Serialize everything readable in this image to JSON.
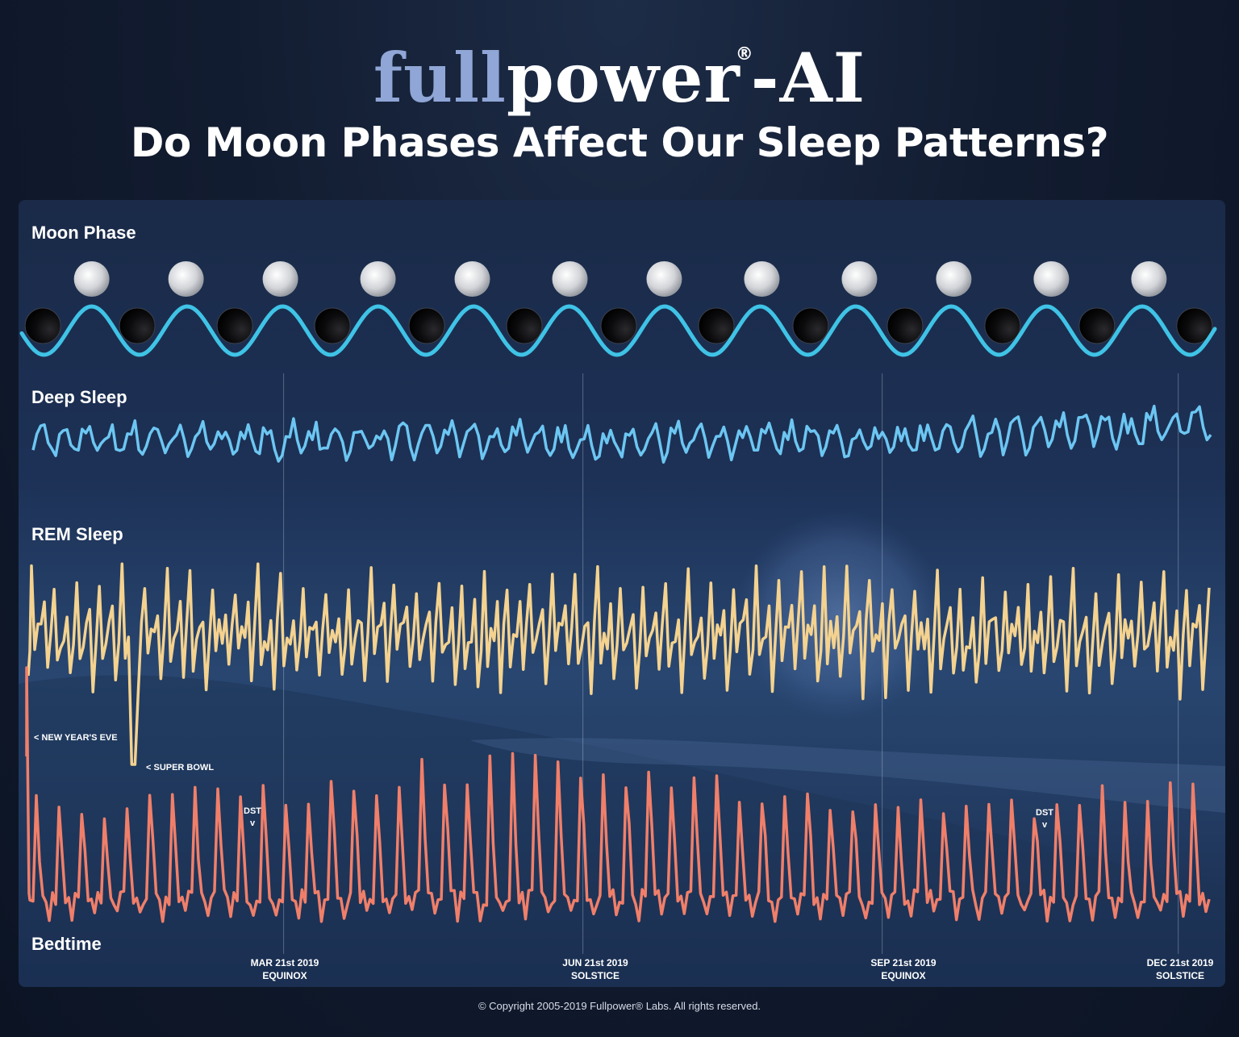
{
  "header": {
    "logo_part1": "full",
    "logo_part2": "power",
    "logo_reg": "®",
    "logo_part3": "-AI",
    "title": "Do Moon Phases Affect Our Sleep Patterns?"
  },
  "footer": {
    "copyright": "© Copyright 2005-2019 Fullpower® Labs. All rights reserved."
  },
  "colors": {
    "logo_accent": "#8fa6d6",
    "moon_wave_high": "#f3d34a",
    "moon_wave_low": "#3fc3e6",
    "deep_sleep": "#6cc6f2",
    "rem_sleep": "#f4d28f",
    "bedtime": "#f07f6a"
  },
  "chart_data": {
    "type": "line",
    "title": "Do Moon Phases Affect Our Sleep Patterns?",
    "x_range": [
      "2019-01-01",
      "2019-12-31"
    ],
    "grid": false,
    "units_note": "",
    "markers": [
      {
        "date": "2019-03-21",
        "label": "MAR 21st 2019",
        "sublabel": "EQUINOX"
      },
      {
        "date": "2019-06-21",
        "label": "JUN 21st 2019",
        "sublabel": "SOLSTICE"
      },
      {
        "date": "2019-09-21",
        "label": "SEP 21st 2019",
        "sublabel": "EQUINOX"
      },
      {
        "date": "2019-12-21",
        "label": "DEC 21st 2019",
        "sublabel": "SOLSTICE"
      }
    ],
    "annotations": [
      {
        "series": "REM Sleep",
        "date": "2019-01-01",
        "text": "< NEW YEAR'S EVE"
      },
      {
        "series": "REM Sleep",
        "date": "2019-02-03",
        "text": "< SUPER BOWL"
      },
      {
        "series": "Bedtime",
        "date": "2019-03-10",
        "text": "DST",
        "mark": "v"
      },
      {
        "series": "Bedtime",
        "date": "2019-11-03",
        "text": "DST",
        "mark": "v"
      }
    ],
    "moon_phase": {
      "label": "Moon Phase",
      "full_moons": [
        "2019-01-21",
        "2019-02-19",
        "2019-03-20",
        "2019-04-19",
        "2019-05-18",
        "2019-06-17",
        "2019-07-16",
        "2019-08-15",
        "2019-09-14",
        "2019-10-13",
        "2019-11-12",
        "2019-12-12"
      ],
      "new_moons": [
        "2019-01-06",
        "2019-02-04",
        "2019-03-06",
        "2019-04-05",
        "2019-05-04",
        "2019-06-03",
        "2019-07-02",
        "2019-08-01",
        "2019-08-30",
        "2019-09-28",
        "2019-10-28",
        "2019-11-26",
        "2019-12-26"
      ],
      "cycles": 12.4
    },
    "series": [
      {
        "name": "Deep Sleep",
        "style": "weekly-oscillation",
        "weekly_cycles": 52,
        "trend": "slight rise toward year end"
      },
      {
        "name": "REM Sleep",
        "style": "spiky-weekly",
        "weekly_cycles": 52,
        "trend": "roughly flat with dips"
      },
      {
        "name": "Bedtime",
        "style": "weekly-peaks",
        "weekly_cycles": 52,
        "trend": "peaks higher mid-year and at year end"
      }
    ]
  }
}
